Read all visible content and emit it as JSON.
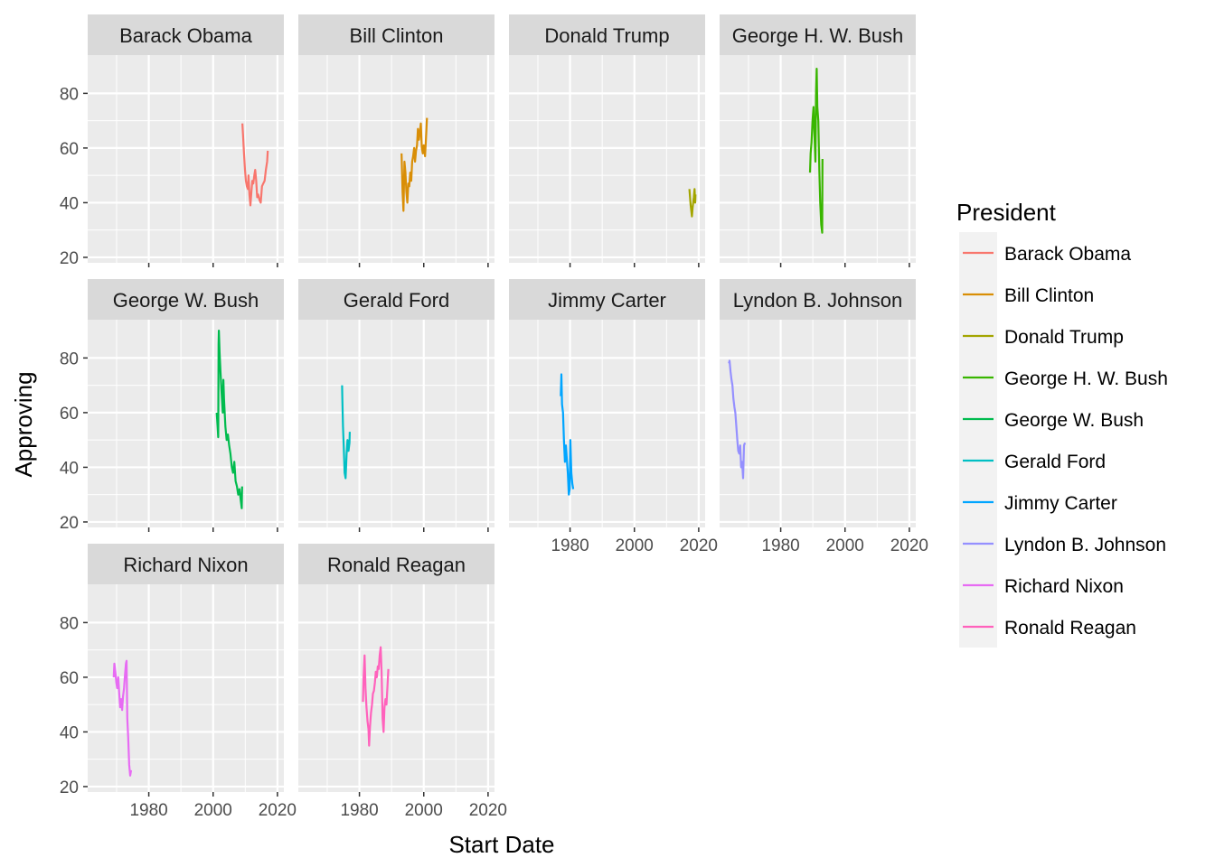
{
  "chart_data": {
    "type": "line",
    "facet": "President",
    "xlabel": "Start Date",
    "ylabel": "Approving",
    "legend_title": "President",
    "legend_position": "right",
    "grid": true,
    "xlim": [
      1961,
      2022
    ],
    "ylim": [
      18,
      94
    ],
    "x_ticks": [
      1980,
      2000,
      2020
    ],
    "y_ticks": [
      20,
      40,
      60,
      80
    ],
    "series": [
      {
        "name": "Barack Obama",
        "color": "#F8766D",
        "x": [
          2009.1,
          2009.3,
          2009.6,
          2009.9,
          2010.2,
          2010.5,
          2010.8,
          2011.0,
          2011.3,
          2011.6,
          2011.9,
          2012.2,
          2012.5,
          2012.8,
          2013.1,
          2013.4,
          2013.7,
          2014.0,
          2014.4,
          2014.8,
          2015.2,
          2015.6,
          2016.0,
          2016.4,
          2016.8,
          2017.0
        ],
        "y": [
          69,
          65,
          58,
          52,
          48,
          46,
          45,
          50,
          43,
          39,
          44,
          48,
          47,
          50,
          52,
          48,
          42,
          43,
          41,
          40,
          46,
          47,
          48,
          52,
          55,
          59
        ]
      },
      {
        "name": "Bill Clinton",
        "color": "#D98E06",
        "x": [
          1993.1,
          1993.4,
          1993.7,
          1994.0,
          1994.3,
          1994.6,
          1994.9,
          1995.2,
          1995.5,
          1995.8,
          1996.1,
          1996.4,
          1996.7,
          1997.0,
          1997.3,
          1997.6,
          1997.9,
          1998.2,
          1998.5,
          1998.8,
          1999.1,
          1999.4,
          1999.7,
          2000.0,
          2000.4,
          2000.8,
          2001.0
        ],
        "y": [
          58,
          44,
          37,
          55,
          51,
          44,
          40,
          47,
          46,
          51,
          48,
          55,
          57,
          60,
          55,
          59,
          61,
          67,
          63,
          66,
          69,
          60,
          58,
          61,
          57,
          66,
          71
        ]
      },
      {
        "name": "Donald Trump",
        "color": "#A3A500",
        "x": [
          2017.1,
          2017.3,
          2017.5,
          2017.7,
          2017.9,
          2018.1,
          2018.3,
          2018.5,
          2018.7,
          2018.9,
          2019.0
        ],
        "y": [
          45,
          42,
          39,
          37,
          35,
          38,
          40,
          42,
          45,
          40,
          43
        ]
      },
      {
        "name": "George H. W. Bush",
        "color": "#39B600",
        "x": [
          1989.1,
          1989.3,
          1989.6,
          1989.9,
          1990.2,
          1990.5,
          1990.8,
          1991.0,
          1991.2,
          1991.4,
          1991.7,
          1992.0,
          1992.3,
          1992.6,
          1992.9,
          1993.0
        ],
        "y": [
          51,
          58,
          62,
          70,
          75,
          65,
          55,
          80,
          89,
          75,
          70,
          52,
          40,
          32,
          29,
          56
        ]
      },
      {
        "name": "George W. Bush",
        "color": "#00BB4E",
        "x": [
          2001.1,
          2001.4,
          2001.6,
          2001.7,
          2001.8,
          2002.0,
          2002.3,
          2002.6,
          2003.0,
          2003.2,
          2003.4,
          2003.8,
          2004.2,
          2004.6,
          2005.0,
          2005.4,
          2005.8,
          2006.2,
          2006.6,
          2007.0,
          2007.4,
          2007.8,
          2008.2,
          2008.6,
          2008.9,
          2009.0
        ],
        "y": [
          60,
          55,
          51,
          85,
          90,
          82,
          75,
          68,
          60,
          72,
          65,
          55,
          50,
          52,
          48,
          45,
          40,
          38,
          42,
          35,
          33,
          30,
          32,
          28,
          25,
          33
        ]
      },
      {
        "name": "Gerald Ford",
        "color": "#00BFC4",
        "x": [
          1974.6,
          1974.7,
          1974.9,
          1975.1,
          1975.4,
          1975.7,
          1976.0,
          1976.3,
          1976.6,
          1976.9,
          1977.0
        ],
        "y": [
          70,
          65,
          55,
          48,
          38,
          36,
          45,
          50,
          46,
          49,
          53
        ]
      },
      {
        "name": "Jimmy Carter",
        "color": "#00A5FF",
        "x": [
          1977.1,
          1977.3,
          1977.5,
          1977.8,
          1978.1,
          1978.4,
          1978.7,
          1979.0,
          1979.3,
          1979.6,
          1979.9,
          1980.1,
          1980.4,
          1980.7,
          1981.0
        ],
        "y": [
          66,
          74,
          63,
          60,
          50,
          42,
          48,
          43,
          38,
          30,
          32,
          50,
          38,
          34,
          32
        ]
      },
      {
        "name": "Lyndon B. Johnson",
        "color": "#9590FF",
        "x": [
          1963.9,
          1964.1,
          1964.4,
          1964.7,
          1965.0,
          1965.3,
          1965.6,
          1965.9,
          1966.2,
          1966.5,
          1966.8,
          1967.1,
          1967.4,
          1967.7,
          1968.0,
          1968.3,
          1968.6,
          1968.9
        ],
        "y": [
          78,
          79,
          75,
          72,
          70,
          65,
          62,
          60,
          55,
          50,
          46,
          45,
          48,
          40,
          42,
          36,
          48,
          49
        ]
      },
      {
        "name": "Richard Nixon",
        "color": "#E76BF3",
        "x": [
          1969.1,
          1969.3,
          1969.6,
          1969.9,
          1970.2,
          1970.5,
          1970.8,
          1971.1,
          1971.4,
          1971.7,
          1972.0,
          1972.3,
          1972.6,
          1972.9,
          1973.1,
          1973.3,
          1973.6,
          1973.9,
          1974.2,
          1974.5
        ],
        "y": [
          60,
          65,
          62,
          58,
          56,
          60,
          54,
          49,
          52,
          48,
          53,
          56,
          61,
          65,
          66,
          45,
          38,
          28,
          24,
          26
        ]
      },
      {
        "name": "Ronald Reagan",
        "color": "#FF62BC",
        "x": [
          1981.1,
          1981.3,
          1981.6,
          1981.9,
          1982.2,
          1982.5,
          1982.8,
          1983.0,
          1983.3,
          1983.6,
          1983.9,
          1984.2,
          1984.5,
          1984.8,
          1985.1,
          1985.4,
          1985.7,
          1986.0,
          1986.3,
          1986.6,
          1986.9,
          1987.2,
          1987.5,
          1987.8,
          1988.1,
          1988.4,
          1988.7,
          1989.0
        ],
        "y": [
          51,
          60,
          68,
          56,
          49,
          44,
          41,
          35,
          42,
          47,
          50,
          54,
          55,
          58,
          62,
          60,
          64,
          63,
          68,
          71,
          62,
          45,
          40,
          49,
          52,
          50,
          56,
          63
        ]
      }
    ]
  }
}
